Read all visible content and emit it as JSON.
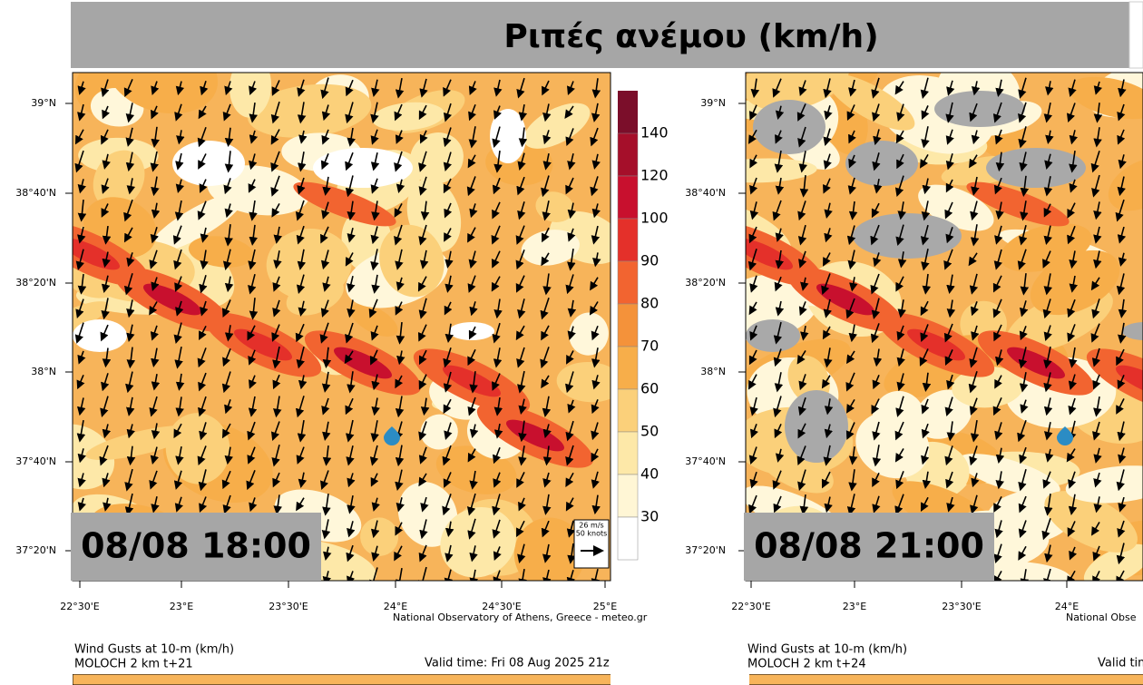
{
  "header": {
    "title": "Ριπές ανέμου (km/h)"
  },
  "panels": [
    {
      "timestamp": "08/08 18:00",
      "lat_labels": [
        "39°N",
        "38°40'N",
        "38°20'N",
        "38°N",
        "37°40'N",
        "37°20'N"
      ],
      "lon_labels": [
        "22°30'E",
        "23°E",
        "23°30'E",
        "24°E",
        "24°30'E",
        "25°E"
      ],
      "credit": "National Observatory of Athens, Greece - meteo.gr",
      "colorbar": [
        "140",
        "120",
        "100",
        "90",
        "80",
        "70",
        "60",
        "50",
        "40",
        "30"
      ],
      "vector_key": [
        "26 m/s",
        "50 knots"
      ],
      "caption": [
        "Wind Gusts at 10-m (km/h)",
        "MOLOCH 2 km t+21"
      ],
      "valid_time": "Valid time: Fri 08 Aug 2025 21z"
    },
    {
      "timestamp": "08/08 21:00",
      "lat_labels": [
        "39°N",
        "38°40'N",
        "38°20'N",
        "38°N",
        "37°40'N",
        "37°20'N"
      ],
      "lon_labels": [
        "22°30'E",
        "23°E",
        "23°30'E",
        "24°E"
      ],
      "credit": "National Obse",
      "caption": [
        "Wind Gusts at 10-m (km/h)",
        "MOLOCH 2 km t+24"
      ],
      "valid_time": "Valid tim"
    }
  ]
}
